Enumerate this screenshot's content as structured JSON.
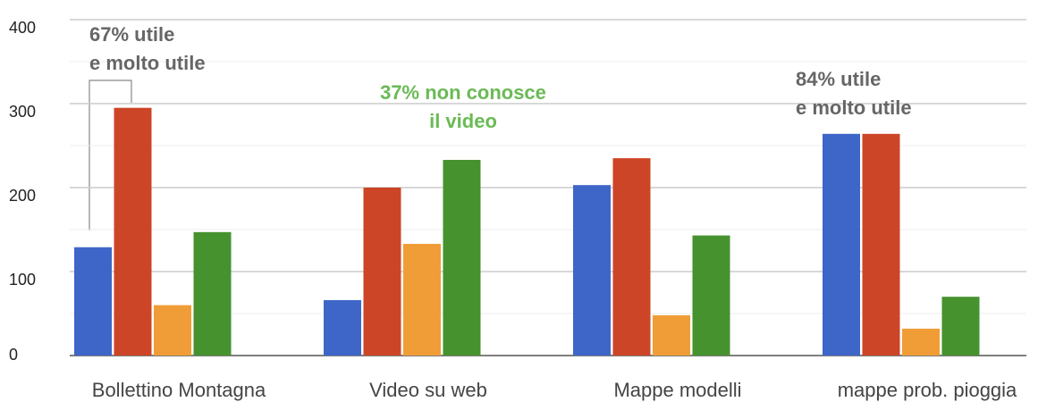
{
  "chart_data": {
    "type": "bar",
    "categories": [
      "Bollettino Montagna",
      "Video su web",
      "Mappe modelli",
      "mappe prob. pioggia"
    ],
    "series": [
      {
        "color": "#3e66c8",
        "values": [
          129,
          66,
          203,
          264
        ]
      },
      {
        "color": "#cc4526",
        "values": [
          295,
          200,
          235,
          264
        ]
      },
      {
        "color": "#f09d38",
        "values": [
          60,
          133,
          48,
          32
        ]
      },
      {
        "color": "#45922f",
        "values": [
          147,
          233,
          143,
          70
        ]
      }
    ],
    "ylim": [
      0,
      400
    ],
    "yticks": [
      0,
      100,
      200,
      300,
      400
    ],
    "minor_yticks": [
      50,
      150,
      250,
      350
    ],
    "grid": true,
    "annotations": [
      {
        "lines": [
          "67% utile",
          "e molto utile"
        ],
        "color": "#666666"
      },
      {
        "lines": [
          "37% non conosce",
          "il video"
        ],
        "color": "#6aba55"
      },
      {
        "lines": [
          "84% utile",
          "e molto utile"
        ],
        "color": "#666666"
      }
    ]
  }
}
